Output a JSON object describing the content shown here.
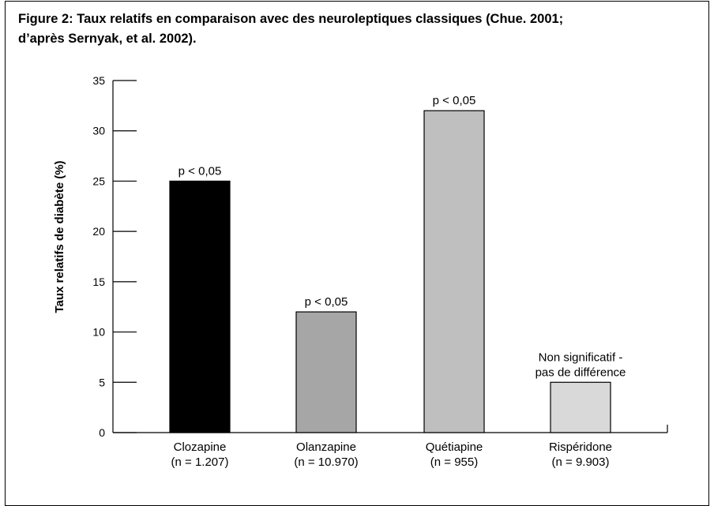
{
  "caption": {
    "line1": "Figure 2: Taux relatifs en comparaison avec des neuroleptiques classiques (Chue. 2001;",
    "line2": "d’après Sernyak, et al. 2002)."
  },
  "chart_data": {
    "type": "bar",
    "title": "",
    "ylabel": "Taux relatifs de diabète (%)",
    "xlabel": "",
    "ylim": [
      0,
      35
    ],
    "yticks": [
      0,
      5,
      10,
      15,
      20,
      25,
      30,
      35
    ],
    "grid": false,
    "categories": [
      {
        "name": "Clozapine",
        "n": "(n = 1.207)"
      },
      {
        "name": "Olanzapine",
        "n": "(n = 10.970)"
      },
      {
        "name": "Quétiapine",
        "n": "(n = 955)"
      },
      {
        "name": "Rispéridone",
        "n": "(n = 9.903)"
      }
    ],
    "values": [
      25,
      12,
      32,
      5
    ],
    "bar_labels": [
      [
        "p < 0,05"
      ],
      [
        "p < 0,05"
      ],
      [
        "p < 0,05"
      ],
      [
        "Non significatif -",
        "pas de différence"
      ]
    ],
    "colors": [
      "#000000",
      "#a6a6a6",
      "#bfbfbf",
      "#d9d9d9"
    ]
  }
}
